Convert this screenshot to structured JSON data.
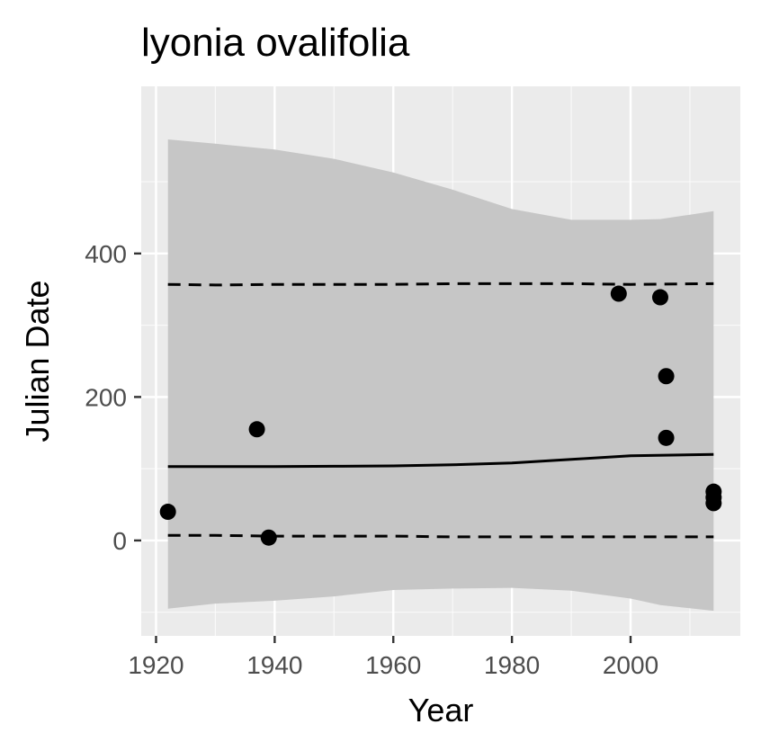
{
  "chart_data": {
    "type": "scatter",
    "title": "lyonia ovalifolia",
    "xlabel": "Year",
    "ylabel": "Julian Date",
    "xlim": [
      1917.5,
      2018.5
    ],
    "ylim": [
      -133,
      633
    ],
    "x_ticks": [
      1920,
      1940,
      1960,
      1980,
      2000
    ],
    "y_ticks": [
      0,
      200,
      400
    ],
    "grid": true,
    "legend": "none",
    "points": [
      {
        "x": 1922,
        "y": 40
      },
      {
        "x": 1937,
        "y": 155
      },
      {
        "x": 1939,
        "y": 4
      },
      {
        "x": 1998,
        "y": 344
      },
      {
        "x": 2005,
        "y": 339
      },
      {
        "x": 2006,
        "y": 229
      },
      {
        "x": 2006,
        "y": 143
      },
      {
        "x": 2014,
        "y": 68
      },
      {
        "x": 2014,
        "y": 60
      },
      {
        "x": 2014,
        "y": 52
      }
    ],
    "fit_line": {
      "x": [
        1922,
        1930,
        1940,
        1950,
        1960,
        1970,
        1980,
        1990,
        2000,
        2014
      ],
      "y": [
        103,
        103,
        103,
        103.5,
        104,
        105.5,
        108,
        113,
        118,
        120
      ]
    },
    "prediction_upper": {
      "x": [
        1922,
        1930,
        1940,
        1950,
        1960,
        1970,
        1980,
        1990,
        2000,
        2014
      ],
      "y": [
        357,
        356,
        357,
        357,
        357,
        358,
        358,
        358,
        357,
        358
      ]
    },
    "prediction_lower": {
      "x": [
        1922,
        1930,
        1940,
        1950,
        1960,
        1970,
        1980,
        1990,
        2000,
        2014
      ],
      "y": [
        7,
        7,
        6,
        6,
        6,
        5,
        5,
        5,
        5,
        5
      ]
    },
    "confidence_band": {
      "x": [
        1922,
        1930,
        1940,
        1950,
        1960,
        1970,
        1980,
        1990,
        2000,
        2005,
        2014
      ],
      "upper": [
        559,
        553,
        545,
        532,
        513,
        489,
        462,
        447,
        447,
        448,
        459
      ],
      "lower": [
        -95,
        -88,
        -84,
        -78,
        -69,
        -67,
        -66,
        -70,
        -81,
        -90,
        -98
      ]
    },
    "colors": {
      "panel": "#ebebeb",
      "grid_major": "#ffffff",
      "band": "#c6c6c6",
      "points": "#000000",
      "lines": "#000000"
    }
  }
}
